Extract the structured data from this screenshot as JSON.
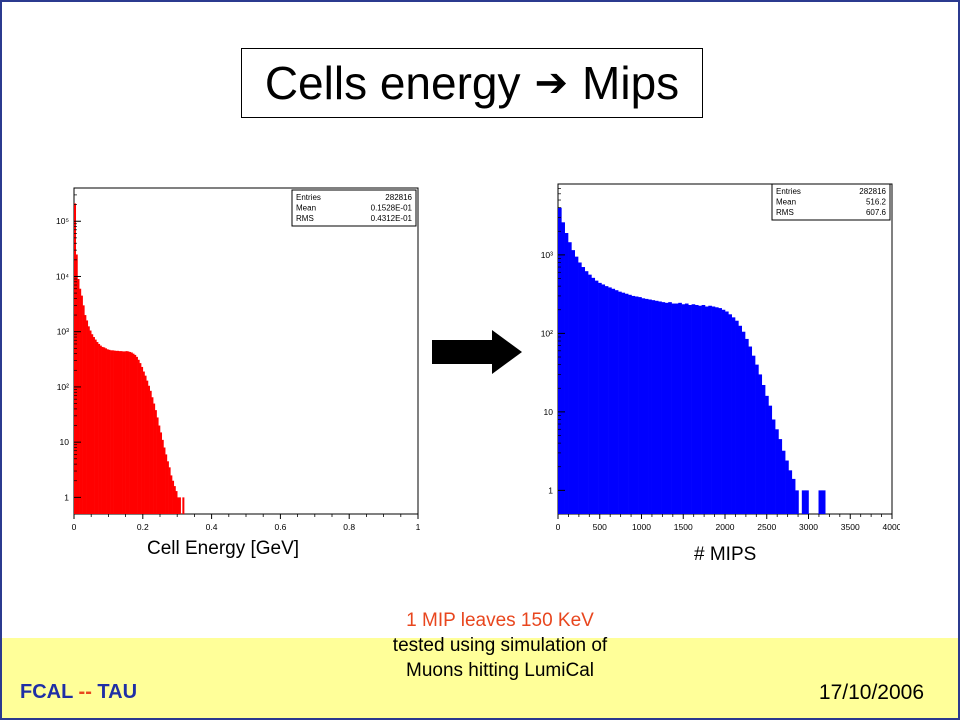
{
  "slide": {
    "title_left": "Cells energy",
    "title_arrow": "➔",
    "title_right": "Mips",
    "note_line1": "1 MIP leaves 150 KeV",
    "note_line2": "tested using simulation of",
    "note_line3": "Muons hitting LumiCal",
    "footer_org_a": "FCAL",
    "footer_dash": "--",
    "footer_org_b": "TAU",
    "footer_date": "17/10/2006",
    "frame_color": "#2b3a8f",
    "footer_color": "#ffff99"
  },
  "chart_data": [
    {
      "type": "bar",
      "xlabel": "Cell Energy [GeV]",
      "ylabel": "",
      "xlim": [
        0,
        1
      ],
      "ylog": true,
      "ylim": [
        0.5,
        400000
      ],
      "color": "#ff0000",
      "xticks": [
        "0",
        "0.2",
        "0.4",
        "0.6",
        "0.8",
        "1"
      ],
      "xtick_values": [
        0,
        0.2,
        0.4,
        0.6,
        0.8,
        1
      ],
      "yticks": [
        "1",
        "10",
        "10²",
        "10³",
        "10⁴",
        "10⁵"
      ],
      "ytick_values": [
        1,
        10,
        100,
        1000,
        10000,
        100000
      ],
      "stats": [
        {
          "label": "Entries",
          "value": "282816"
        },
        {
          "label": "Mean",
          "value": "0.1528E-01"
        },
        {
          "label": "RMS",
          "value": "0.4312E-01"
        }
      ],
      "bin_width": 0.005,
      "bins_x": [
        0.0,
        0.005,
        0.01,
        0.015,
        0.02,
        0.025,
        0.03,
        0.035,
        0.04,
        0.045,
        0.05,
        0.055,
        0.06,
        0.065,
        0.07,
        0.075,
        0.08,
        0.085,
        0.09,
        0.095,
        0.1,
        0.105,
        0.11,
        0.115,
        0.12,
        0.125,
        0.13,
        0.135,
        0.14,
        0.145,
        0.15,
        0.155,
        0.16,
        0.165,
        0.17,
        0.175,
        0.18,
        0.185,
        0.19,
        0.195,
        0.2,
        0.205,
        0.21,
        0.215,
        0.22,
        0.225,
        0.23,
        0.235,
        0.24,
        0.245,
        0.25,
        0.255,
        0.26,
        0.265,
        0.27,
        0.275,
        0.28,
        0.285,
        0.29,
        0.295,
        0.3,
        0.305,
        0.31,
        0.315,
        0.32,
        0.325,
        0.33,
        0.335,
        0.34,
        0.345,
        0.35,
        0.355,
        0.36,
        0.365,
        0.37,
        0.375,
        0.38,
        0.385,
        0.39,
        0.395,
        0.4,
        0.405,
        0.41,
        0.415,
        0.42,
        0.425,
        0.43,
        0.435,
        0.44,
        0.445,
        0.45,
        0.455,
        0.46,
        0.465,
        0.47,
        0.475,
        0.48,
        0.485,
        0.49
      ],
      "bins_y": [
        210000,
        25000,
        9000,
        6000,
        4500,
        3000,
        2000,
        1600,
        1250,
        1050,
        900,
        800,
        720,
        650,
        600,
        560,
        530,
        520,
        500,
        480,
        470,
        460,
        460,
        455,
        450,
        450,
        445,
        445,
        440,
        440,
        445,
        440,
        430,
        420,
        400,
        380,
        350,
        310,
        270,
        230,
        190,
        160,
        130,
        105,
        85,
        65,
        50,
        38,
        28,
        20,
        15,
        11,
        8,
        6,
        4.5,
        3.5,
        2.5,
        2,
        1.6,
        1.3,
        1,
        1,
        0,
        1,
        0,
        0,
        0,
        0,
        0,
        0,
        0,
        0,
        0,
        0,
        0,
        0,
        0,
        0,
        0,
        0,
        0,
        0,
        0,
        0,
        0,
        0,
        0,
        0,
        0,
        0,
        0,
        0,
        0,
        0,
        0,
        0,
        0,
        0,
        0
      ]
    },
    {
      "type": "bar",
      "xlabel": "# MIPS",
      "ylabel": "",
      "xlim": [
        0,
        4000
      ],
      "ylog": true,
      "ylim": [
        0.5,
        8000
      ],
      "color": "#0000ff",
      "xticks": [
        "0",
        "500",
        "1000",
        "1500",
        "2000",
        "2500",
        "3000",
        "3500",
        "4000"
      ],
      "xtick_values": [
        0,
        500,
        1000,
        1500,
        2000,
        2500,
        3000,
        3500,
        4000
      ],
      "yticks": [
        "1",
        "10",
        "10²",
        "10³"
      ],
      "ytick_values": [
        1,
        10,
        100,
        1000
      ],
      "stats": [
        {
          "label": "Entries",
          "value": "282816"
        },
        {
          "label": "Mean",
          "value": "516.2"
        },
        {
          "label": "RMS",
          "value": "607.6"
        }
      ],
      "bin_width": 40,
      "bins_x": [
        0,
        40,
        80,
        120,
        160,
        200,
        240,
        280,
        320,
        360,
        400,
        440,
        480,
        520,
        560,
        600,
        640,
        680,
        720,
        760,
        800,
        840,
        880,
        920,
        960,
        1000,
        1040,
        1080,
        1120,
        1160,
        1200,
        1240,
        1280,
        1320,
        1360,
        1400,
        1440,
        1480,
        1520,
        1560,
        1600,
        1640,
        1680,
        1720,
        1760,
        1800,
        1840,
        1880,
        1920,
        1960,
        2000,
        2040,
        2080,
        2120,
        2160,
        2200,
        2240,
        2280,
        2320,
        2360,
        2400,
        2440,
        2480,
        2520,
        2560,
        2600,
        2640,
        2680,
        2720,
        2760,
        2800,
        2840,
        2880,
        2920,
        2960,
        3000,
        3040,
        3080,
        3120,
        3160,
        3200
      ],
      "bins_y": [
        4000,
        2600,
        1900,
        1450,
        1150,
        950,
        800,
        700,
        620,
        560,
        510,
        470,
        440,
        420,
        400,
        385,
        370,
        355,
        340,
        330,
        320,
        310,
        300,
        295,
        290,
        280,
        275,
        270,
        265,
        260,
        255,
        250,
        245,
        250,
        240,
        240,
        245,
        235,
        240,
        230,
        235,
        230,
        225,
        230,
        220,
        225,
        220,
        215,
        210,
        200,
        190,
        175,
        160,
        145,
        125,
        105,
        85,
        68,
        52,
        40,
        30,
        22,
        16,
        12,
        8,
        6,
        4.5,
        3.2,
        2.4,
        1.8,
        1.4,
        1,
        0,
        1,
        1,
        0,
        0,
        0,
        1,
        1,
        0
      ]
    }
  ]
}
